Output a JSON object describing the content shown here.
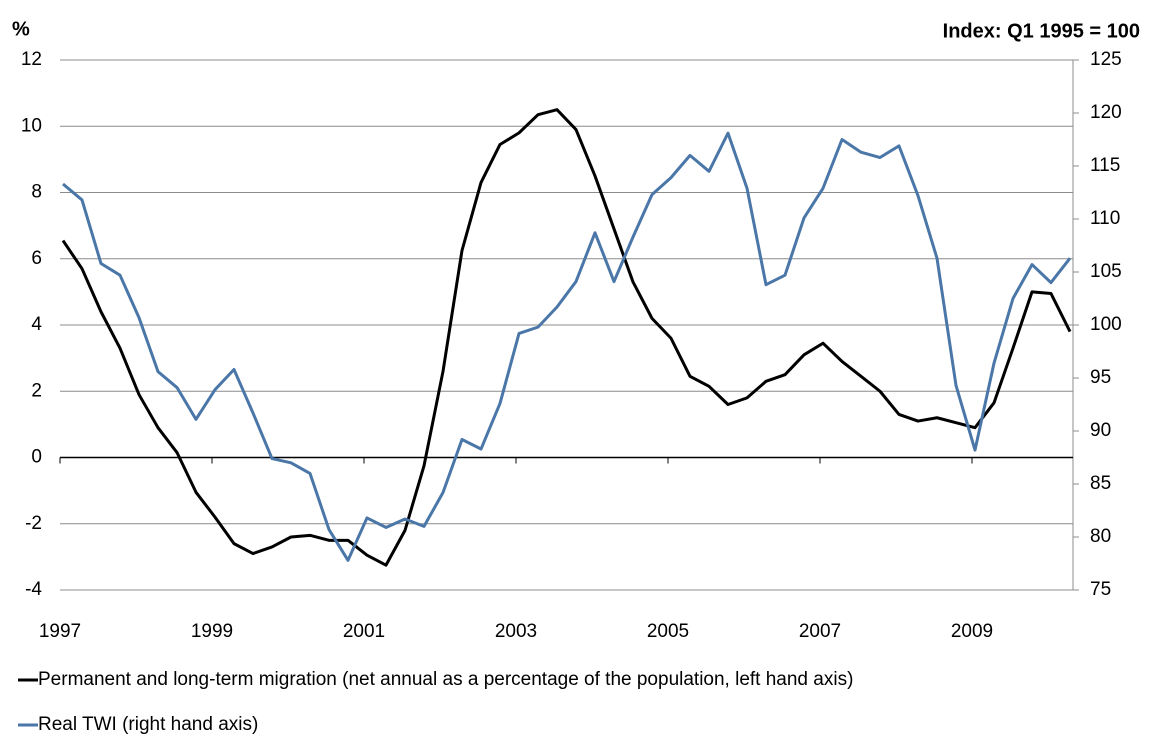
{
  "chart_data": {
    "type": "line",
    "y_label": "%",
    "y2_label": "Index: Q1 1995 = 100",
    "categories": [
      "1997",
      null,
      null,
      null,
      null,
      null,
      null,
      null,
      "1999",
      null,
      null,
      null,
      null,
      null,
      null,
      null,
      "2001",
      null,
      null,
      null,
      null,
      null,
      null,
      null,
      "2003",
      null,
      null,
      null,
      null,
      null,
      null,
      null,
      "2005",
      null,
      null,
      null,
      null,
      null,
      null,
      null,
      "2007",
      null,
      null,
      null,
      null,
      null,
      null,
      null,
      "2009",
      null,
      null,
      null,
      null,
      null
    ],
    "series": [
      {
        "name": "Permanent and long-term migration (net annual as a percentage of the population, left hand axis)",
        "color": "#000000",
        "values": [
          6.55,
          5.7,
          4.4,
          3.3,
          1.9,
          0.9,
          0.15,
          -1.05,
          -1.8,
          -2.6,
          -2.9,
          -2.7,
          -2.4,
          -2.35,
          -2.5,
          -2.5,
          -2.95,
          -3.25,
          -2.2,
          -0.25,
          2.6,
          6.25,
          8.3,
          9.45,
          9.8,
          10.35,
          10.5,
          9.9,
          8.5,
          6.9,
          5.3,
          4.2,
          3.6,
          2.45,
          2.15,
          1.6,
          1.8,
          2.3,
          2.5,
          3.1,
          3.45,
          2.9,
          2.45,
          2.0,
          1.3,
          1.1,
          1.2,
          1.05,
          0.9,
          1.65,
          3.3,
          5.0,
          4.95,
          3.8
        ]
      },
      {
        "name": "Real TWI (right hand axis)",
        "color": "#4a76a8",
        "axis": "y2",
        "values": [
          113.3,
          111.8,
          105.8,
          104.7,
          100.7,
          95.6,
          94.1,
          91.1,
          93.9,
          95.8,
          91.7,
          87.4,
          87.0,
          86.0,
          80.7,
          77.8,
          81.8,
          80.9,
          81.7,
          81.0,
          84.2,
          89.2,
          88.3,
          92.6,
          99.2,
          99.8,
          101.7,
          104.1,
          108.7,
          104.1,
          108.3,
          112.3,
          113.9,
          116.0,
          114.5,
          118.1,
          112.9,
          103.8,
          104.7,
          110.1,
          112.9,
          117.5,
          116.3,
          115.8,
          116.9,
          112.2,
          106.3,
          94.3,
          88.2,
          96.4,
          102.5,
          105.7,
          104.0,
          106.3
        ]
      }
    ],
    "ylim": [
      -4,
      12
    ],
    "yticks": [
      -4,
      -2,
      0,
      2,
      4,
      6,
      8,
      10,
      12
    ],
    "y2lim": [
      75,
      125
    ],
    "y2ticks": [
      75,
      80,
      85,
      90,
      95,
      100,
      105,
      110,
      115,
      120,
      125
    ],
    "grid": true
  }
}
